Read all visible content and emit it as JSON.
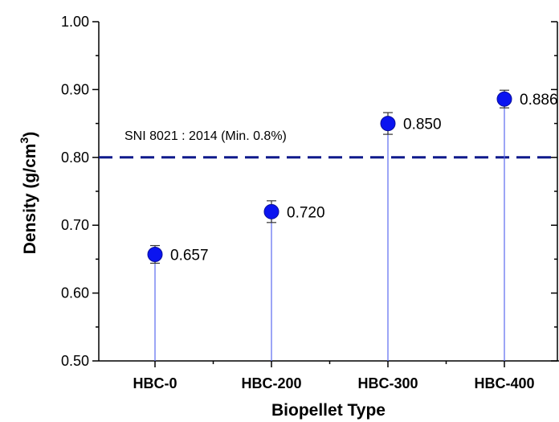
{
  "chart_data": {
    "type": "scatter",
    "xlabel": "Biopellet Type",
    "ylabel": "Density (g/cm",
    "ylabel_sup": "3",
    "ylabel_close": ")",
    "ylim": [
      0.5,
      1.0
    ],
    "yticks": [
      "0.50",
      "0.60",
      "0.70",
      "0.80",
      "0.90",
      "1.00"
    ],
    "ytick_values": [
      0.5,
      0.6,
      0.7,
      0.8,
      0.9,
      1.0
    ],
    "categories": [
      "HBC-0",
      "HBC-200",
      "HBC-300",
      "HBC-400"
    ],
    "values": [
      0.657,
      0.72,
      0.85,
      0.886
    ],
    "value_labels": [
      "0.657",
      "0.720",
      "0.850",
      "0.886"
    ],
    "errors": [
      0.013,
      0.016,
      0.016,
      0.013
    ],
    "reference_line": {
      "value": 0.8,
      "label": "SNI 8021 : 2014 (Min. 0.8%)"
    },
    "colors": {
      "marker": "#0a14f0",
      "stem": "#5a6af0",
      "reference": "#0f1a8c",
      "axis": "#000000"
    }
  }
}
